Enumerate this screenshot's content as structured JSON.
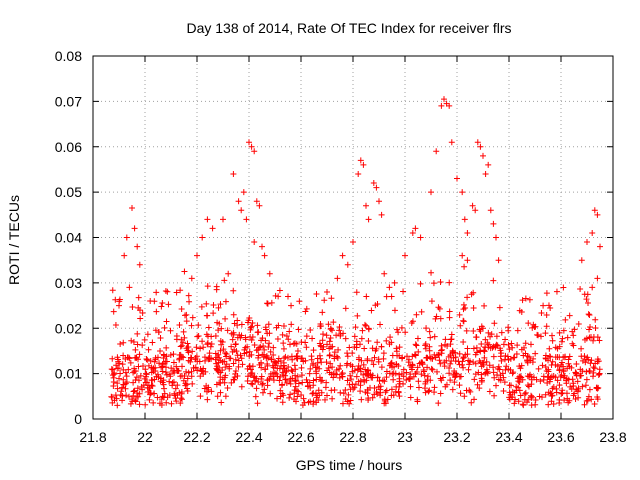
{
  "chart_data": {
    "type": "scatter",
    "title": "Day 138 of 2014, Rate Of TEC Index for receiver flrs",
    "xlabel": "GPS time / hours",
    "ylabel": "ROTI / TECUs",
    "xlim": [
      21.8,
      23.8
    ],
    "ylim": [
      0,
      0.08
    ],
    "x_ticks": [
      21.8,
      22,
      22.2,
      22.4,
      22.6,
      22.8,
      23,
      23.2,
      23.4,
      23.6,
      23.8
    ],
    "x_tick_labels": [
      "21.8",
      "22",
      "22.2",
      "22.4",
      "22.6",
      "22.8",
      "23",
      "23.2",
      "23.4",
      "23.6",
      "23.8"
    ],
    "y_ticks": [
      0,
      0.01,
      0.02,
      0.03,
      0.04,
      0.05,
      0.06,
      0.07,
      0.08
    ],
    "y_tick_labels": [
      "0",
      "0.01",
      "0.02",
      "0.03",
      "0.04",
      "0.05",
      "0.06",
      "0.07",
      "0.08"
    ],
    "grid": true,
    "marker": "+",
    "color": "#ff0000",
    "x_range_of_data": [
      21.87,
      23.75
    ],
    "background_sample_count": 1500,
    "series": [
      {
        "name": "ROTI",
        "points": [
          [
            21.95,
            0.0465
          ],
          [
            21.96,
            0.042
          ],
          [
            21.93,
            0.04
          ],
          [
            21.92,
            0.036
          ],
          [
            21.98,
            0.034
          ],
          [
            21.97,
            0.038
          ],
          [
            21.9,
            0.025
          ],
          [
            21.94,
            0.029
          ],
          [
            22.02,
            0.026
          ],
          [
            22.18,
            0.031
          ],
          [
            22.2,
            0.036
          ],
          [
            22.22,
            0.04
          ],
          [
            22.24,
            0.044
          ],
          [
            22.26,
            0.042
          ],
          [
            22.3,
            0.044
          ],
          [
            22.32,
            0.032
          ],
          [
            22.34,
            0.054
          ],
          [
            22.36,
            0.048
          ],
          [
            22.37,
            0.046
          ],
          [
            22.38,
            0.05
          ],
          [
            22.39,
            0.044
          ],
          [
            22.4,
            0.061
          ],
          [
            22.41,
            0.06
          ],
          [
            22.42,
            0.059
          ],
          [
            22.43,
            0.048
          ],
          [
            22.44,
            0.047
          ],
          [
            22.42,
            0.039
          ],
          [
            22.45,
            0.038
          ],
          [
            22.46,
            0.036
          ],
          [
            22.48,
            0.032
          ],
          [
            22.55,
            0.027
          ],
          [
            22.7,
            0.028
          ],
          [
            22.74,
            0.031
          ],
          [
            22.76,
            0.036
          ],
          [
            22.78,
            0.034
          ],
          [
            22.8,
            0.039
          ],
          [
            22.82,
            0.054
          ],
          [
            22.83,
            0.057
          ],
          [
            22.84,
            0.056
          ],
          [
            22.85,
            0.047
          ],
          [
            22.86,
            0.044
          ],
          [
            22.88,
            0.052
          ],
          [
            22.89,
            0.051
          ],
          [
            22.9,
            0.048
          ],
          [
            22.91,
            0.045
          ],
          [
            22.92,
            0.032
          ],
          [
            22.94,
            0.029
          ],
          [
            22.96,
            0.03
          ],
          [
            23.0,
            0.036
          ],
          [
            23.03,
            0.041
          ],
          [
            23.04,
            0.042
          ],
          [
            23.06,
            0.04
          ],
          [
            23.1,
            0.05
          ],
          [
            23.12,
            0.059
          ],
          [
            23.14,
            0.069
          ],
          [
            23.15,
            0.0705
          ],
          [
            23.16,
            0.0695
          ],
          [
            23.17,
            0.069
          ],
          [
            23.18,
            0.061
          ],
          [
            23.2,
            0.053
          ],
          [
            23.22,
            0.05
          ],
          [
            23.23,
            0.044
          ],
          [
            23.24,
            0.041
          ],
          [
            23.26,
            0.047
          ],
          [
            23.27,
            0.046
          ],
          [
            23.28,
            0.061
          ],
          [
            23.29,
            0.06
          ],
          [
            23.3,
            0.058
          ],
          [
            23.31,
            0.054
          ],
          [
            23.32,
            0.056
          ],
          [
            23.33,
            0.046
          ],
          [
            23.34,
            0.043
          ],
          [
            23.35,
            0.04
          ],
          [
            23.36,
            0.035
          ],
          [
            23.22,
            0.036
          ],
          [
            23.24,
            0.035
          ],
          [
            23.68,
            0.035
          ],
          [
            23.7,
            0.039
          ],
          [
            23.72,
            0.041
          ],
          [
            23.73,
            0.046
          ],
          [
            23.74,
            0.045
          ],
          [
            23.75,
            0.038
          ],
          [
            23.74,
            0.031
          ],
          [
            23.72,
            0.029
          ]
        ]
      }
    ]
  }
}
